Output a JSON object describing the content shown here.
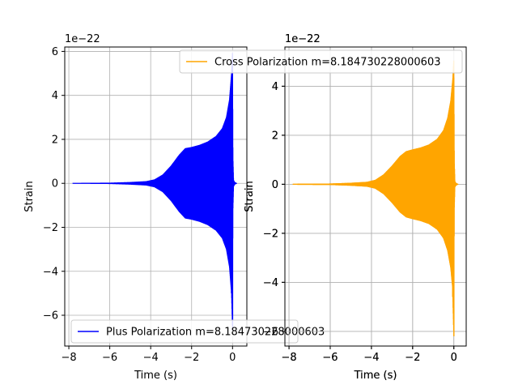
{
  "chart_data": [
    {
      "type": "line",
      "xlabel": "Time (s)",
      "ylabel": "Strain",
      "offset_text": "1e−22",
      "xlim": [
        -8.2,
        0.7
      ],
      "ylim": [
        -7.4,
        6.2
      ],
      "xticks": [
        -8,
        -6,
        -4,
        -2,
        0
      ],
      "xtick_labels": [
        "−8",
        "−6",
        "−4",
        "−2",
        "0"
      ],
      "yticks": [
        -6,
        -4,
        -2,
        0,
        2,
        4,
        6
      ],
      "ytick_labels": [
        "−6",
        "−4",
        "−2",
        "0",
        "2",
        "4",
        "6"
      ],
      "grid": true,
      "legend_position": "lower-left",
      "series": [
        {
          "name": "Plus Polarization m=8.184730228000603",
          "color": "#0000ff",
          "envelope_points": [
            [
              -7.8,
              0.02
            ],
            [
              -6.0,
              0.03
            ],
            [
              -5.0,
              0.06
            ],
            [
              -4.2,
              0.1
            ],
            [
              -3.8,
              0.18
            ],
            [
              -3.4,
              0.4
            ],
            [
              -3.0,
              0.8
            ],
            [
              -2.6,
              1.3
            ],
            [
              -2.3,
              1.6
            ],
            [
              -2.0,
              1.65
            ],
            [
              -1.6,
              1.75
            ],
            [
              -1.2,
              1.9
            ],
            [
              -0.8,
              2.15
            ],
            [
              -0.5,
              2.5
            ],
            [
              -0.3,
              3.0
            ],
            [
              -0.15,
              3.8
            ],
            [
              -0.05,
              5.0
            ],
            [
              0.0,
              6.0
            ],
            [
              0.02,
              1.2
            ],
            [
              0.05,
              0.15
            ],
            [
              0.1,
              0.06
            ],
            [
              0.2,
              0.01
            ]
          ],
          "envelope_min": [
            [
              -0.05,
              -5.0
            ],
            [
              0.0,
              -6.7
            ]
          ]
        }
      ]
    },
    {
      "type": "line",
      "xlabel": "Time (s)",
      "ylabel": "Strain",
      "offset_text": "1e−22",
      "xlim": [
        -8.2,
        0.6
      ],
      "ylim": [
        -6.6,
        5.6
      ],
      "xticks": [
        -8,
        -6,
        -4,
        -2,
        0
      ],
      "xtick_labels": [
        "−8",
        "−6",
        "−4",
        "−2",
        "0"
      ],
      "yticks": [
        -6,
        -4,
        -2,
        0,
        2,
        4
      ],
      "ytick_labels": [
        "−6",
        "−4",
        "−2",
        "0",
        "2",
        "4"
      ],
      "grid": true,
      "legend_position": "upper-right",
      "series": [
        {
          "name": "Cross Polarization m=8.184730228000603",
          "color": "#ffa500",
          "envelope_points": [
            [
              -7.8,
              0.02
            ],
            [
              -6.0,
              0.03
            ],
            [
              -5.0,
              0.06
            ],
            [
              -4.2,
              0.1
            ],
            [
              -3.8,
              0.18
            ],
            [
              -3.4,
              0.4
            ],
            [
              -3.0,
              0.75
            ],
            [
              -2.6,
              1.15
            ],
            [
              -2.3,
              1.35
            ],
            [
              -2.0,
              1.42
            ],
            [
              -1.6,
              1.5
            ],
            [
              -1.2,
              1.62
            ],
            [
              -0.8,
              1.85
            ],
            [
              -0.5,
              2.2
            ],
            [
              -0.3,
              2.7
            ],
            [
              -0.15,
              3.4
            ],
            [
              -0.05,
              4.3
            ],
            [
              0.0,
              5.1
            ],
            [
              0.02,
              1.0
            ],
            [
              0.05,
              0.12
            ],
            [
              0.1,
              0.05
            ],
            [
              0.2,
              0.01
            ]
          ],
          "envelope_min": [
            [
              -0.05,
              -4.6
            ],
            [
              0.0,
              -6.2
            ]
          ]
        }
      ]
    }
  ]
}
